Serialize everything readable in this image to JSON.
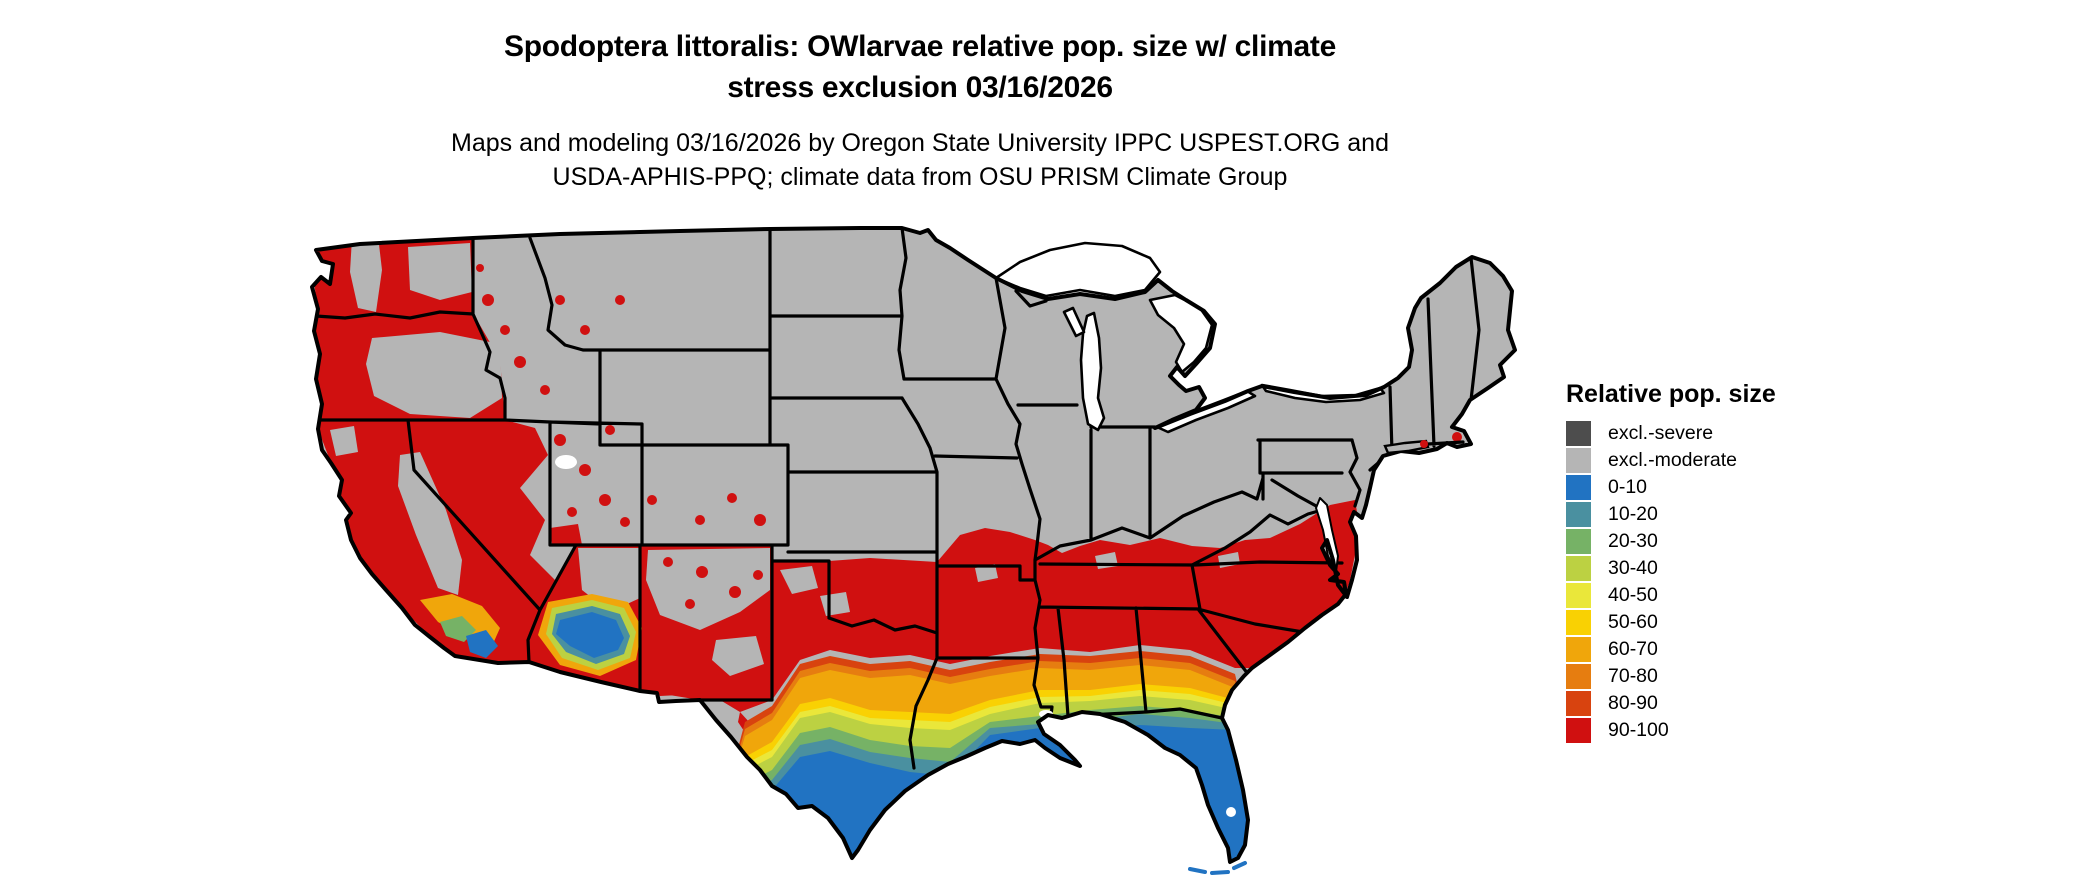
{
  "title": {
    "line1": "Spodoptera littoralis: OWlarvae relative pop. size w/ climate",
    "line2": "stress exclusion 03/16/2026"
  },
  "subtitle": {
    "line1": "Maps and modeling 03/16/2026 by Oregon State University IPPC USPEST.ORG and",
    "line2": "USDA-APHIS-PPQ; climate data from OSU PRISM Climate Group"
  },
  "legend": {
    "title": "Relative pop. size",
    "items": [
      {
        "key": "severe",
        "label": "excl.-severe",
        "color": "#4d4d4d"
      },
      {
        "key": "moderate",
        "label": "excl.-moderate",
        "color": "#b5b5b5"
      },
      {
        "key": "c0_10",
        "label": "0-10",
        "color": "#2173c2"
      },
      {
        "key": "c10_20",
        "label": "10-20",
        "color": "#4a90a0"
      },
      {
        "key": "c20_30",
        "label": "20-30",
        "color": "#76b266"
      },
      {
        "key": "c30_40",
        "label": "30-40",
        "color": "#bcd142"
      },
      {
        "key": "c40_50",
        "label": "40-50",
        "color": "#eae73a"
      },
      {
        "key": "c50_60",
        "label": "50-60",
        "color": "#f9d103"
      },
      {
        "key": "c60_70",
        "label": "60-70",
        "color": "#f0a60b"
      },
      {
        "key": "c70_80",
        "label": "70-80",
        "color": "#e67d10"
      },
      {
        "key": "c80_90",
        "label": "80-90",
        "color": "#d8430f"
      },
      {
        "key": "c90_100",
        "label": "90-100",
        "color": "#d01010"
      }
    ]
  },
  "map": {
    "border_color": "#000000",
    "water_color": "#ffffff",
    "land_default_class": "excl.-moderate",
    "regions_summary": [
      {
        "region": "Northern tier: northern Plains, upper Midwest, Great Lakes states, Northeast, interior Rockies and Great Basin",
        "class": "excl.-moderate"
      },
      {
        "region": "Pacific coast and valleys of WA, OR, CA; most of Arizona; southern New Mexico; far-west Texas",
        "class": "90-100"
      },
      {
        "region": "Broad southern band: Oklahoma, north Texas, Arkansas, Tennessee, southern Missouri/Kentucky, Virginia, Carolinas, northern GA/AL/MS",
        "class": "90-100"
      },
      {
        "region": "Western mountain ranges (Cascades, Sierra Nevada, central Oregon, Mogollon Rim, northern New Mexico)",
        "class": "excl.-moderate"
      },
      {
        "region": "Transition bands across central Texas and the central Gulf states",
        "class": "80-90 down to 30-40"
      },
      {
        "region": "South Texas, coastal Louisiana and Gulf Coast, Florida peninsula, southern Arizona low desert, Imperial Valley CA",
        "class": "0-10 with 10-20 and 20-30 fringes"
      },
      {
        "region": "Atlantic coastal pockets: Delmarva peninsula, New Jersey shore, Long Island tip, Cape Cod",
        "class": "90-100"
      }
    ]
  }
}
